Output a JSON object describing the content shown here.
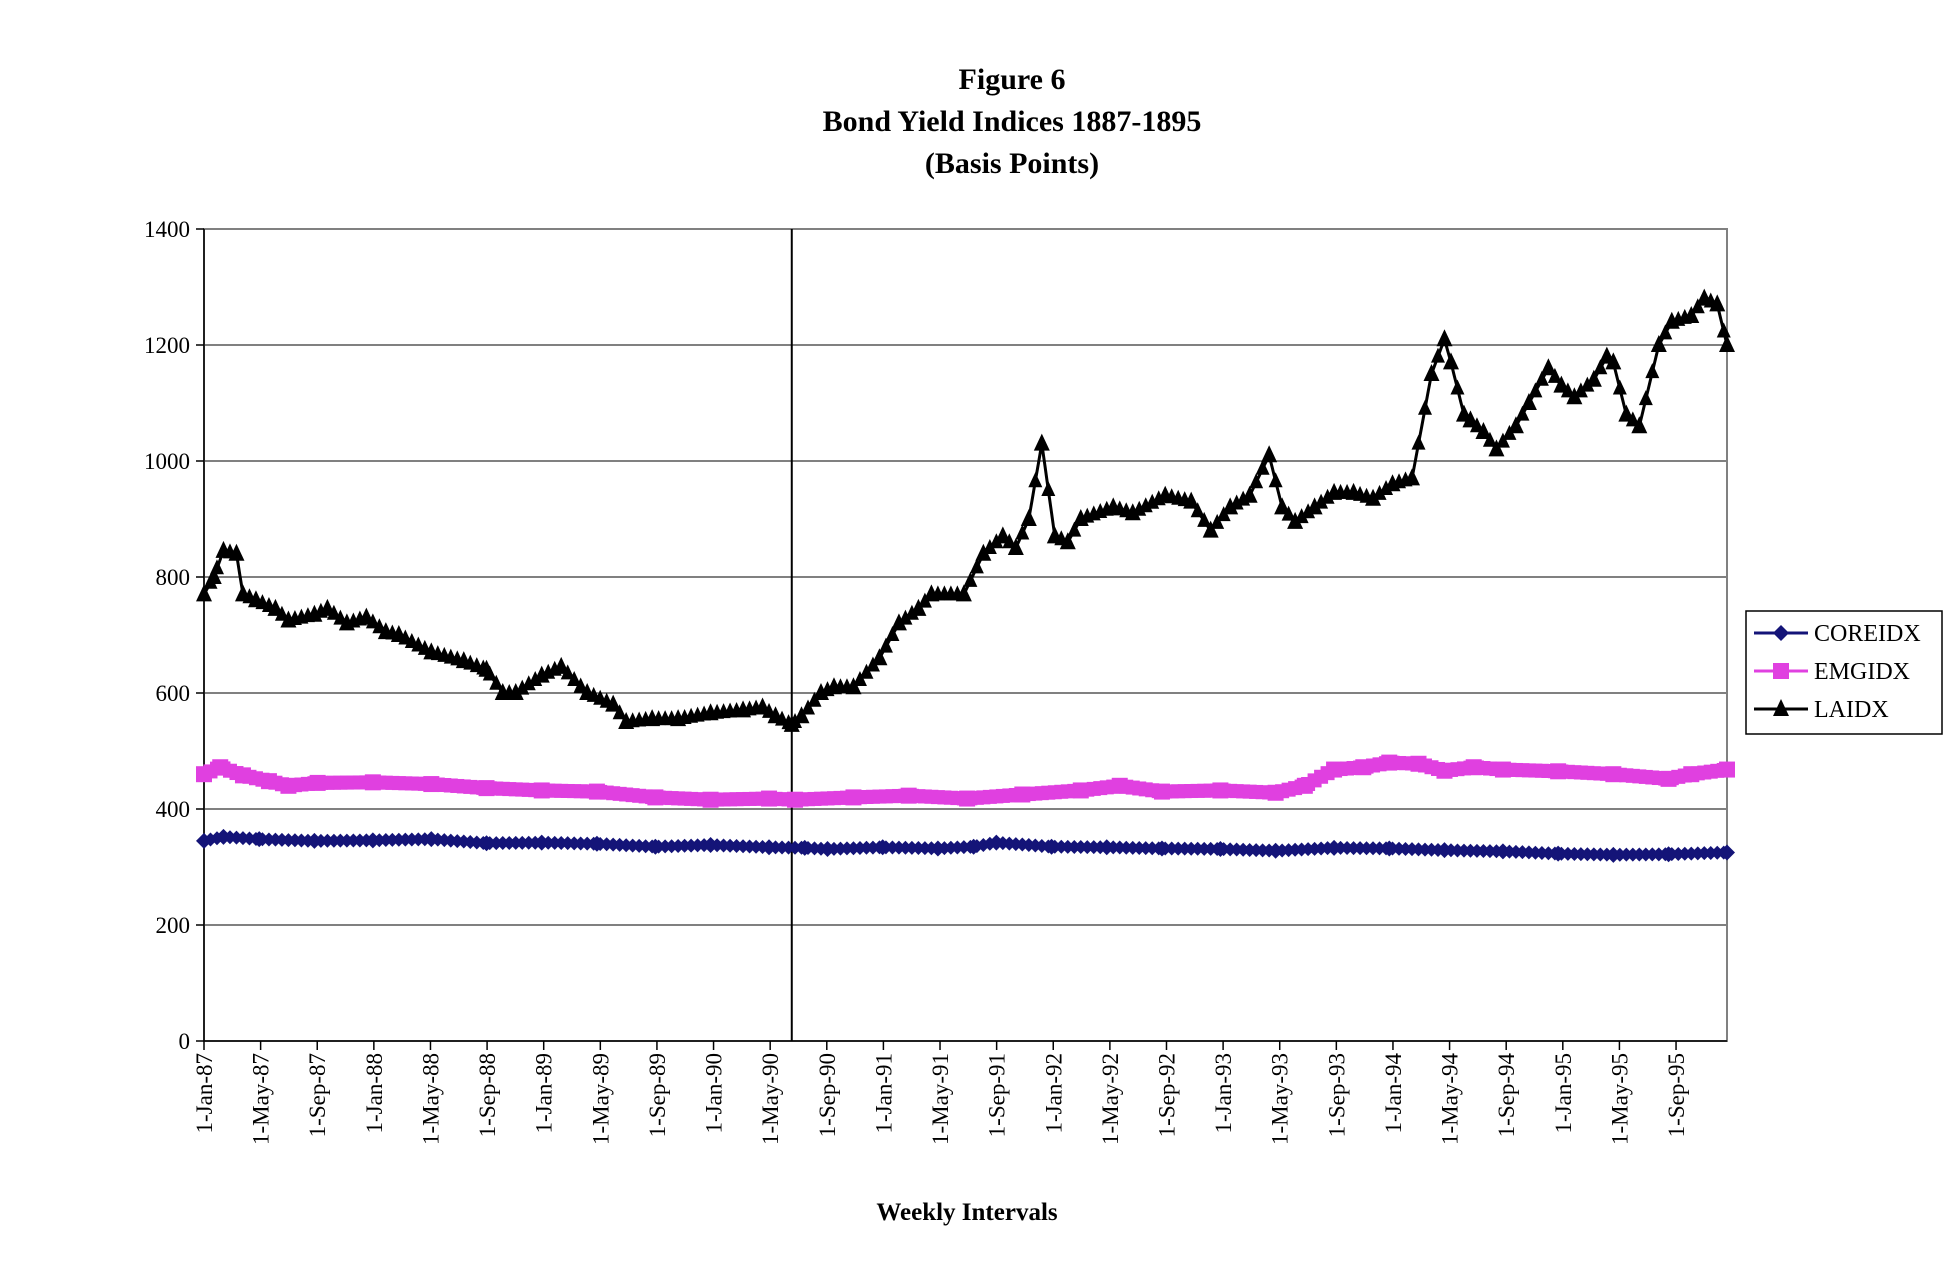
{
  "chart_data": {
    "type": "line",
    "title_lines": [
      "Figure 6",
      "Bond Yield Indices 1887-1895",
      "(Basis Points)"
    ],
    "xlabel": "Weekly Intervals",
    "ylabel": "",
    "ylim": [
      0,
      1400
    ],
    "yticks": [
      0,
      200,
      400,
      600,
      800,
      1000,
      1200,
      1400
    ],
    "x_unit": "weeks since 1-Jan-87",
    "xlim": [
      0,
      469
    ],
    "xtick_labels": [
      "1-Jan-87",
      "1-May-87",
      "1-Sep-87",
      "1-Jan-88",
      "1-May-88",
      "1-Sep-88",
      "1-Jan-89",
      "1-May-89",
      "1-Sep-89",
      "1-Jan-90",
      "1-May-90",
      "1-Sep-90",
      "1-Jan-91",
      "1-May-91",
      "1-Sep-91",
      "1-Jan-92",
      "1-May-92",
      "1-Sep-92",
      "1-Jan-93",
      "1-May-93",
      "1-Sep-93",
      "1-Jan-94",
      "1-May-94",
      "1-Sep-94",
      "1-Jan-95",
      "1-May-95",
      "1-Sep-95"
    ],
    "vertical_line_week": 181,
    "grid": "horizontal",
    "legend_position": "right",
    "series": [
      {
        "name": "COREIDX",
        "color": "#141478",
        "marker": "diamond",
        "x": [
          0,
          6,
          17,
          34,
          52,
          70,
          87,
          104,
          121,
          139,
          156,
          174,
          185,
          192,
          209,
          226,
          237,
          244,
          261,
          278,
          295,
          313,
          330,
          348,
          365,
          382,
          400,
          417,
          434,
          451,
          469
        ],
        "values": [
          345,
          352,
          348,
          345,
          346,
          348,
          341,
          342,
          340,
          335,
          338,
          334,
          333,
          331,
          334,
          332,
          335,
          342,
          335,
          334,
          332,
          331,
          328,
          333,
          332,
          329,
          327,
          323,
          321,
          322,
          325
        ]
      },
      {
        "name": "EMGIDX",
        "color": "#e040e0",
        "marker": "square",
        "x": [
          0,
          5,
          12,
          20,
          26,
          35,
          52,
          70,
          87,
          104,
          121,
          139,
          156,
          174,
          182,
          200,
          217,
          235,
          252,
          270,
          282,
          295,
          313,
          330,
          339,
          348,
          357,
          365,
          374,
          382,
          391,
          400,
          417,
          434,
          451,
          458,
          469
        ],
        "values": [
          460,
          472,
          458,
          448,
          440,
          445,
          446,
          443,
          436,
          432,
          430,
          420,
          416,
          418,
          416,
          420,
          423,
          418,
          425,
          432,
          440,
          430,
          432,
          428,
          440,
          468,
          472,
          480,
          478,
          466,
          472,
          468,
          465,
          460,
          452,
          460,
          468
        ]
      },
      {
        "name": "LAIDX",
        "color": "#000000",
        "marker": "triangle",
        "x": [
          0,
          3,
          6,
          10,
          12,
          16,
          22,
          26,
          34,
          38,
          44,
          50,
          56,
          60,
          70,
          80,
          87,
          92,
          96,
          104,
          110,
          118,
          126,
          130,
          138,
          146,
          156,
          166,
          172,
          176,
          181,
          184,
          190,
          194,
          200,
          208,
          214,
          220,
          224,
          234,
          240,
          246,
          250,
          254,
          258,
          262,
          266,
          270,
          280,
          286,
          296,
          304,
          310,
          316,
          322,
          328,
          332,
          336,
          342,
          348,
          354,
          360,
          366,
          372,
          378,
          382,
          384,
          388,
          390,
          394,
          398,
          404,
          408,
          414,
          418,
          422,
          428,
          432,
          434,
          438,
          442,
          448,
          452,
          458,
          462,
          466,
          469
        ],
        "values": [
          770,
          800,
          845,
          840,
          770,
          760,
          745,
          725,
          735,
          745,
          720,
          730,
          705,
          700,
          670,
          655,
          640,
          600,
          600,
          630,
          645,
          600,
          580,
          550,
          555,
          555,
          565,
          570,
          575,
          560,
          545,
          560,
          600,
          610,
          610,
          660,
          720,
          745,
          770,
          770,
          840,
          870,
          850,
          900,
          1030,
          870,
          860,
          900,
          920,
          910,
          940,
          930,
          880,
          920,
          940,
          1010,
          920,
          895,
          920,
          945,
          945,
          935,
          960,
          970,
          1150,
          1210,
          1170,
          1080,
          1070,
          1050,
          1020,
          1060,
          1100,
          1160,
          1130,
          1110,
          1140,
          1180,
          1170,
          1080,
          1060,
          1200,
          1240,
          1250,
          1280,
          1270,
          1200
        ]
      }
    ]
  }
}
